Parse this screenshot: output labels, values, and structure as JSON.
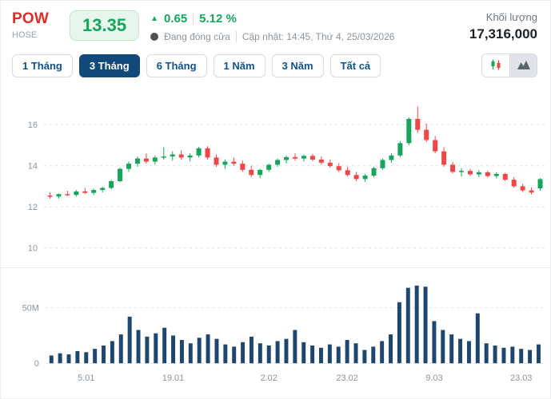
{
  "header": {
    "symbol": "POW",
    "exchange": "HOSE",
    "price": "13.35",
    "change_arrow": "▲",
    "change": "0.65",
    "change_percent": "5.12 %",
    "market_status": "Đang đóng cửa",
    "updated": "Cập nhật: 14:45, Thứ 4, 25/03/2026",
    "volume_label": "Khối lượng",
    "volume_value": "17,316,000"
  },
  "tabs": [
    {
      "label": "1 Tháng",
      "active": false
    },
    {
      "label": "3 Tháng",
      "active": true
    },
    {
      "label": "6 Tháng",
      "active": false
    },
    {
      "label": "1 Năm",
      "active": false
    },
    {
      "label": "3 Năm",
      "active": false
    },
    {
      "label": "Tất cả",
      "active": false
    }
  ],
  "chart_toggle": {
    "candlestick_icon": "candlestick-chart-icon",
    "area_icon": "area-chart-icon",
    "selected": "area"
  },
  "colors": {
    "up": "#17a45c",
    "down": "#f04646",
    "volume_bar": "#1f476e",
    "accent_navy": "#11497a",
    "symbol_red": "#dc2c2c"
  },
  "chart_data": {
    "type": "candlestick",
    "period": "3 months",
    "price_ylim": [
      9.6,
      17.6
    ],
    "price_ticks": [
      10,
      12,
      14,
      16
    ],
    "volume_unit": "M",
    "volume_ylim_millions": [
      0,
      80
    ],
    "volume_ticks": [
      {
        "v": 0,
        "label": "0"
      },
      {
        "v": 50,
        "label": "50M"
      }
    ],
    "x_tick_labels": [
      {
        "i": 4,
        "label": "5.01"
      },
      {
        "i": 14,
        "label": "19.01"
      },
      {
        "i": 25,
        "label": "2.02"
      },
      {
        "i": 34,
        "label": "23.02"
      },
      {
        "i": 44,
        "label": "9.03"
      },
      {
        "i": 54,
        "label": "23.03"
      }
    ],
    "candles": [
      {
        "o": 12.55,
        "h": 12.7,
        "l": 12.4,
        "c": 12.5,
        "v": 7
      },
      {
        "o": 12.5,
        "h": 12.65,
        "l": 12.4,
        "c": 12.62,
        "v": 9
      },
      {
        "o": 12.62,
        "h": 12.78,
        "l": 12.52,
        "c": 12.58,
        "v": 8
      },
      {
        "o": 12.58,
        "h": 12.82,
        "l": 12.5,
        "c": 12.75,
        "v": 11
      },
      {
        "o": 12.75,
        "h": 12.92,
        "l": 12.62,
        "c": 12.68,
        "v": 10
      },
      {
        "o": 12.68,
        "h": 12.88,
        "l": 12.58,
        "c": 12.82,
        "v": 13
      },
      {
        "o": 12.82,
        "h": 12.98,
        "l": 12.7,
        "c": 12.92,
        "v": 16
      },
      {
        "o": 12.92,
        "h": 13.3,
        "l": 12.85,
        "c": 13.25,
        "v": 20
      },
      {
        "o": 13.25,
        "h": 13.9,
        "l": 13.2,
        "c": 13.85,
        "v": 26
      },
      {
        "o": 13.85,
        "h": 14.2,
        "l": 13.7,
        "c": 14.1,
        "v": 42
      },
      {
        "o": 14.1,
        "h": 14.45,
        "l": 13.95,
        "c": 14.35,
        "v": 30
      },
      {
        "o": 14.35,
        "h": 14.6,
        "l": 14.1,
        "c": 14.2,
        "v": 24
      },
      {
        "o": 14.2,
        "h": 14.5,
        "l": 14.05,
        "c": 14.4,
        "v": 27
      },
      {
        "o": 14.4,
        "h": 14.9,
        "l": 14.3,
        "c": 14.45,
        "v": 32
      },
      {
        "o": 14.45,
        "h": 14.7,
        "l": 14.25,
        "c": 14.55,
        "v": 25
      },
      {
        "o": 14.55,
        "h": 14.75,
        "l": 14.3,
        "c": 14.4,
        "v": 21
      },
      {
        "o": 14.4,
        "h": 14.6,
        "l": 14.2,
        "c": 14.5,
        "v": 18
      },
      {
        "o": 14.5,
        "h": 14.92,
        "l": 14.4,
        "c": 14.85,
        "v": 23
      },
      {
        "o": 14.85,
        "h": 14.95,
        "l": 14.3,
        "c": 14.4,
        "v": 26
      },
      {
        "o": 14.4,
        "h": 14.55,
        "l": 13.95,
        "c": 14.05,
        "v": 22
      },
      {
        "o": 14.05,
        "h": 14.3,
        "l": 13.85,
        "c": 14.2,
        "v": 17
      },
      {
        "o": 14.2,
        "h": 14.4,
        "l": 14.0,
        "c": 14.1,
        "v": 15
      },
      {
        "o": 14.1,
        "h": 14.25,
        "l": 13.7,
        "c": 13.8,
        "v": 19
      },
      {
        "o": 13.8,
        "h": 14.0,
        "l": 13.45,
        "c": 13.55,
        "v": 24
      },
      {
        "o": 13.55,
        "h": 13.85,
        "l": 13.4,
        "c": 13.8,
        "v": 18
      },
      {
        "o": 13.8,
        "h": 14.1,
        "l": 13.7,
        "c": 14.05,
        "v": 16
      },
      {
        "o": 14.05,
        "h": 14.35,
        "l": 13.95,
        "c": 14.28,
        "v": 20
      },
      {
        "o": 14.28,
        "h": 14.5,
        "l": 14.1,
        "c": 14.42,
        "v": 22
      },
      {
        "o": 14.42,
        "h": 14.6,
        "l": 14.25,
        "c": 14.35,
        "v": 30
      },
      {
        "o": 14.35,
        "h": 14.55,
        "l": 14.2,
        "c": 14.48,
        "v": 19
      },
      {
        "o": 14.48,
        "h": 14.58,
        "l": 14.22,
        "c": 14.3,
        "v": 16
      },
      {
        "o": 14.3,
        "h": 14.45,
        "l": 14.05,
        "c": 14.15,
        "v": 14
      },
      {
        "o": 14.15,
        "h": 14.3,
        "l": 13.9,
        "c": 13.98,
        "v": 17
      },
      {
        "o": 13.98,
        "h": 14.12,
        "l": 13.7,
        "c": 13.78,
        "v": 15
      },
      {
        "o": 13.78,
        "h": 13.95,
        "l": 13.48,
        "c": 13.55,
        "v": 21
      },
      {
        "o": 13.55,
        "h": 13.7,
        "l": 13.25,
        "c": 13.35,
        "v": 18
      },
      {
        "o": 13.35,
        "h": 13.6,
        "l": 13.22,
        "c": 13.52,
        "v": 12
      },
      {
        "o": 13.52,
        "h": 13.95,
        "l": 13.45,
        "c": 13.88,
        "v": 15
      },
      {
        "o": 13.88,
        "h": 14.35,
        "l": 13.8,
        "c": 14.28,
        "v": 20
      },
      {
        "o": 14.28,
        "h": 14.6,
        "l": 14.15,
        "c": 14.5,
        "v": 26
      },
      {
        "o": 14.5,
        "h": 15.2,
        "l": 14.42,
        "c": 15.1,
        "v": 55
      },
      {
        "o": 15.1,
        "h": 16.35,
        "l": 15.0,
        "c": 16.28,
        "v": 68
      },
      {
        "o": 16.28,
        "h": 16.88,
        "l": 15.6,
        "c": 15.75,
        "v": 70
      },
      {
        "o": 15.75,
        "h": 16.05,
        "l": 15.15,
        "c": 15.25,
        "v": 69
      },
      {
        "o": 15.25,
        "h": 15.45,
        "l": 14.6,
        "c": 14.7,
        "v": 38
      },
      {
        "o": 14.7,
        "h": 14.9,
        "l": 13.95,
        "c": 14.05,
        "v": 30
      },
      {
        "o": 14.05,
        "h": 14.18,
        "l": 13.62,
        "c": 13.7,
        "v": 26
      },
      {
        "o": 13.7,
        "h": 13.88,
        "l": 13.48,
        "c": 13.75,
        "v": 22
      },
      {
        "o": 13.75,
        "h": 13.85,
        "l": 13.5,
        "c": 13.58,
        "v": 20
      },
      {
        "o": 13.58,
        "h": 13.78,
        "l": 13.45,
        "c": 13.68,
        "v": 45
      },
      {
        "o": 13.68,
        "h": 13.75,
        "l": 13.42,
        "c": 13.5,
        "v": 18
      },
      {
        "o": 13.5,
        "h": 13.68,
        "l": 13.38,
        "c": 13.6,
        "v": 16
      },
      {
        "o": 13.6,
        "h": 13.66,
        "l": 13.25,
        "c": 13.32,
        "v": 14
      },
      {
        "o": 13.32,
        "h": 13.45,
        "l": 12.92,
        "c": 13.0,
        "v": 15
      },
      {
        "o": 13.0,
        "h": 13.12,
        "l": 12.72,
        "c": 12.8,
        "v": 13
      },
      {
        "o": 12.8,
        "h": 12.95,
        "l": 12.6,
        "c": 12.7,
        "v": 12
      },
      {
        "o": 12.9,
        "h": 13.4,
        "l": 12.78,
        "c": 13.35,
        "v": 17
      }
    ]
  }
}
